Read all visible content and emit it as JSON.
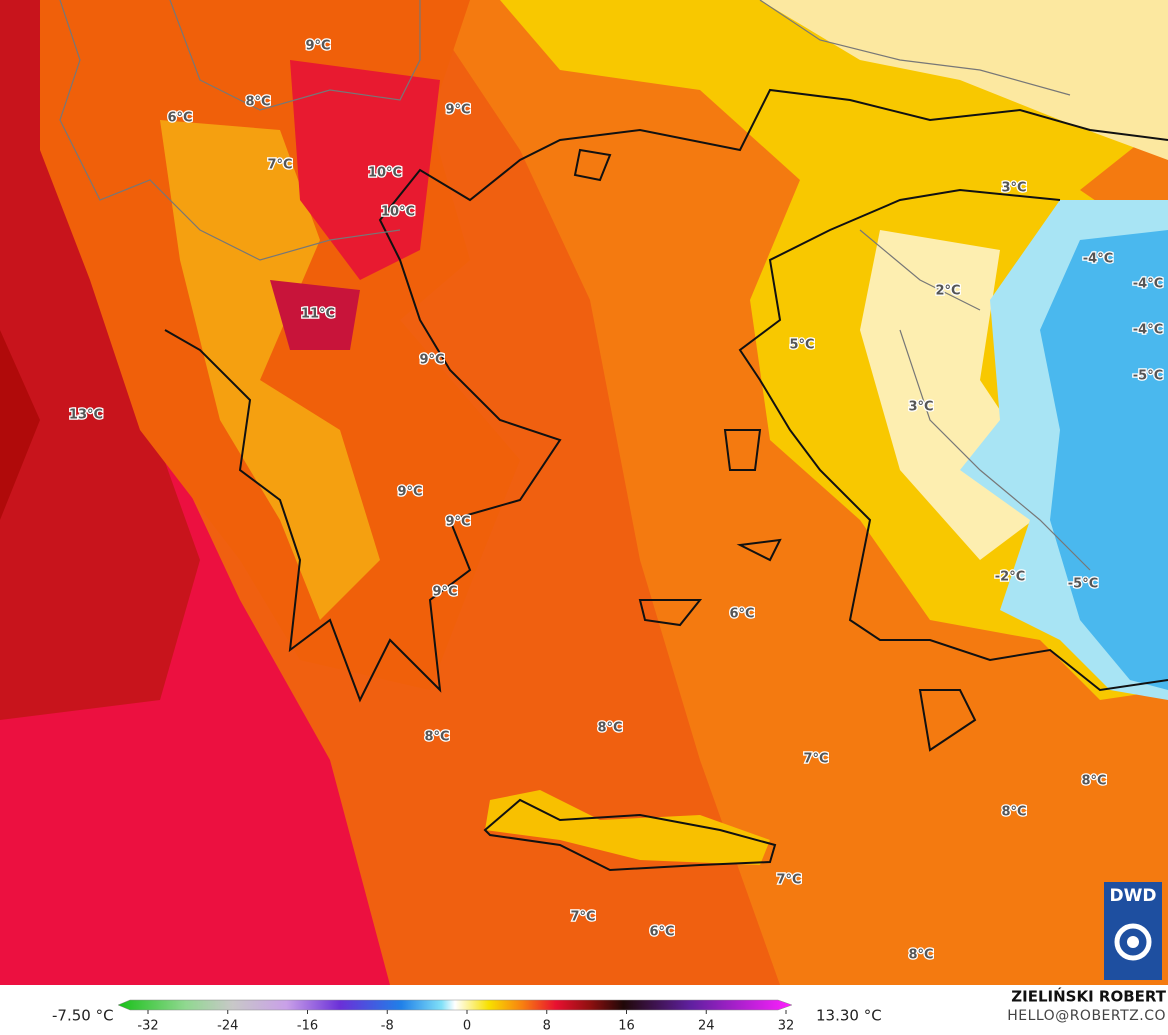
{
  "map": {
    "labels": [
      "9°C",
      "6°C",
      "8°C",
      "9°C",
      "7°C",
      "10°C",
      "10°C",
      "11°C",
      "9°C",
      "13°C",
      "9°C",
      "9°C",
      "9°C",
      "8°C",
      "8°C",
      "6°C",
      "7°C",
      "8°C",
      "8°C",
      "7°C",
      "7°C",
      "6°C",
      "8°C",
      "3°C",
      "2°C",
      "5°C",
      "3°C",
      "-4°C",
      "-4°C",
      "-4°C",
      "-5°C",
      "-2°C",
      "-5°C"
    ],
    "logo": "DWD"
  },
  "colorbar": {
    "min_label": "-7.50 °C",
    "max_label": "13.30 °C",
    "ticks": [
      -32,
      -24,
      -16,
      -8,
      0,
      8,
      16,
      24,
      32
    ]
  },
  "credits": {
    "name": "ZIELIŃSKI ROBERT",
    "contact": "HELLO@ROBERTZ.CO"
  }
}
